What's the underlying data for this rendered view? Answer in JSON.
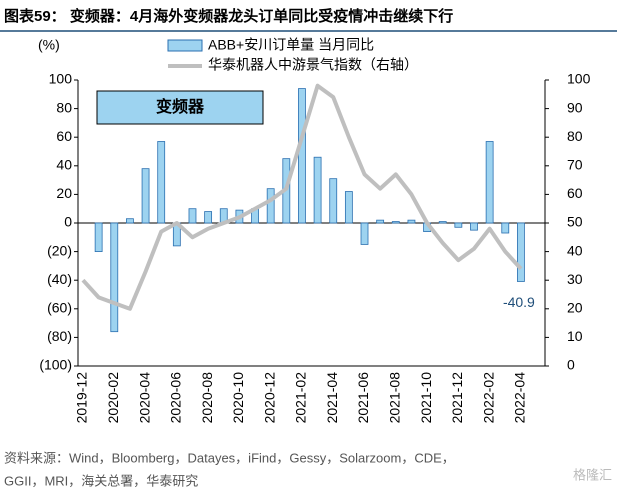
{
  "chart_data": {
    "type": "bar_line",
    "title": "图表59： 变频器：4月海外变频器龙头订单同比受疫情冲击继续下行",
    "y_label": "(%)",
    "annotation": "变频器",
    "source": [
      "资料来源：Wind，Bloomberg，Datayes，iFind，Gessy，Solarzoom，CDE，",
      "GGII，MRI，海关总署，华泰研究"
    ],
    "watermark": "格隆汇",
    "categories": [
      "2019-12",
      null,
      "2020-02",
      null,
      "2020-04",
      null,
      "2020-06",
      null,
      "2020-08",
      null,
      "2020-10",
      null,
      "2020-12",
      null,
      "2021-02",
      null,
      "2021-04",
      null,
      "2021-06",
      null,
      "2021-08",
      null,
      "2021-10",
      null,
      "2021-12",
      null,
      "2022-02",
      null,
      "2022-04"
    ],
    "series": [
      {
        "name": "ABB+安川订单量 当月同比",
        "type": "bar",
        "color": "#9dd3f0",
        "edge": "#2a6fb0",
        "values": [
          null,
          -20,
          -76,
          3,
          38,
          57,
          -16,
          10,
          8,
          10,
          9,
          10,
          24,
          45,
          94,
          46,
          31,
          22,
          -15,
          2,
          1,
          2,
          -6,
          1,
          -3,
          -5,
          57,
          -7,
          -40.9
        ]
      },
      {
        "name": "华泰机器人中游景气指数（右轴）",
        "type": "line",
        "color": "#bfbfbf",
        "axis": "y2",
        "values": [
          30,
          24,
          22,
          20,
          33,
          47,
          50,
          45,
          48,
          50,
          52,
          55,
          58,
          62,
          80,
          98,
          94,
          80,
          67,
          62,
          67,
          60,
          50,
          43,
          37,
          41,
          48,
          40,
          34
        ]
      }
    ],
    "ylim": [
      -100,
      100
    ],
    "yticks": [
      {
        "value": -100,
        "label": "(100)"
      },
      {
        "value": -80,
        "label": "(80)"
      },
      {
        "value": -60,
        "label": "(60)"
      },
      {
        "value": -40,
        "label": "(40)"
      },
      {
        "value": -20,
        "label": "(20)"
      },
      0,
      20,
      40,
      60,
      80,
      100
    ],
    "y2lim": [
      0,
      100
    ],
    "y2ticks": [
      0,
      10,
      20,
      30,
      40,
      50,
      60,
      70,
      80,
      90,
      100
    ]
  }
}
